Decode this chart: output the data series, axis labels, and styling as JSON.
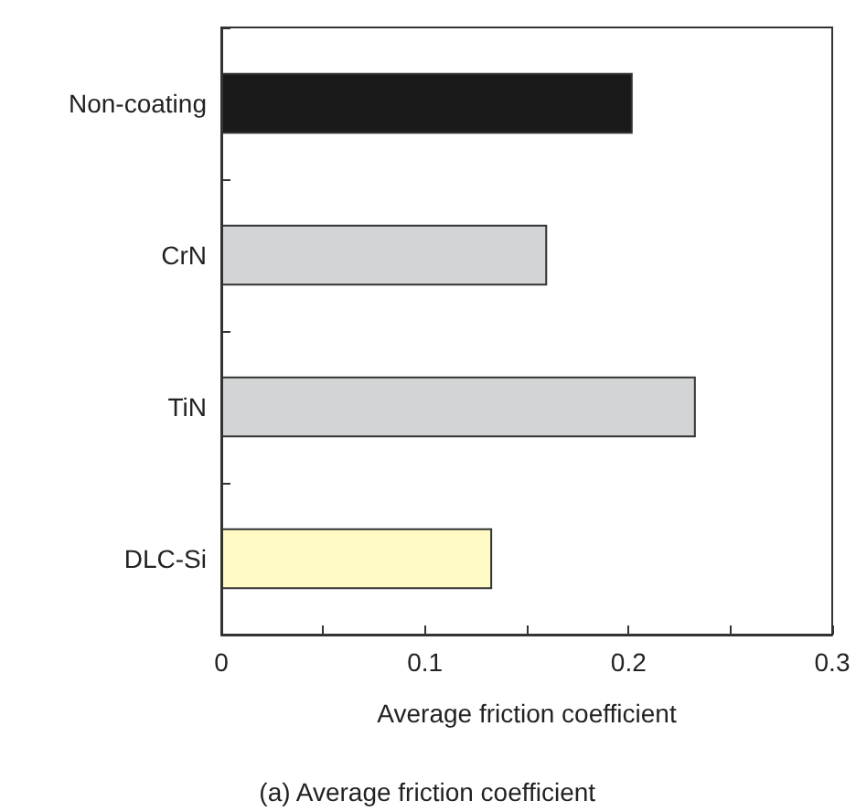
{
  "chart_data": {
    "type": "bar",
    "orientation": "horizontal",
    "categories": [
      "Non-coating",
      "CrN",
      "TiN",
      "DLC-Si"
    ],
    "values": [
      0.202,
      0.16,
      0.233,
      0.133
    ],
    "colors": [
      "#1a1a1a",
      "#d3d4d6",
      "#d3d4d6",
      "#fff9c4"
    ],
    "xlim": [
      0,
      0.3
    ],
    "xticks": [
      0,
      {
        "value": 0.05,
        "label": null
      },
      0.1,
      {
        "value": 0.15,
        "label": null
      },
      0.2,
      {
        "value": 0.25,
        "label": null
      },
      0.3
    ],
    "xlabel": "Average friction coefficient",
    "annotations": [
      "(a) Average friction coefficient"
    ],
    "grid": false
  }
}
